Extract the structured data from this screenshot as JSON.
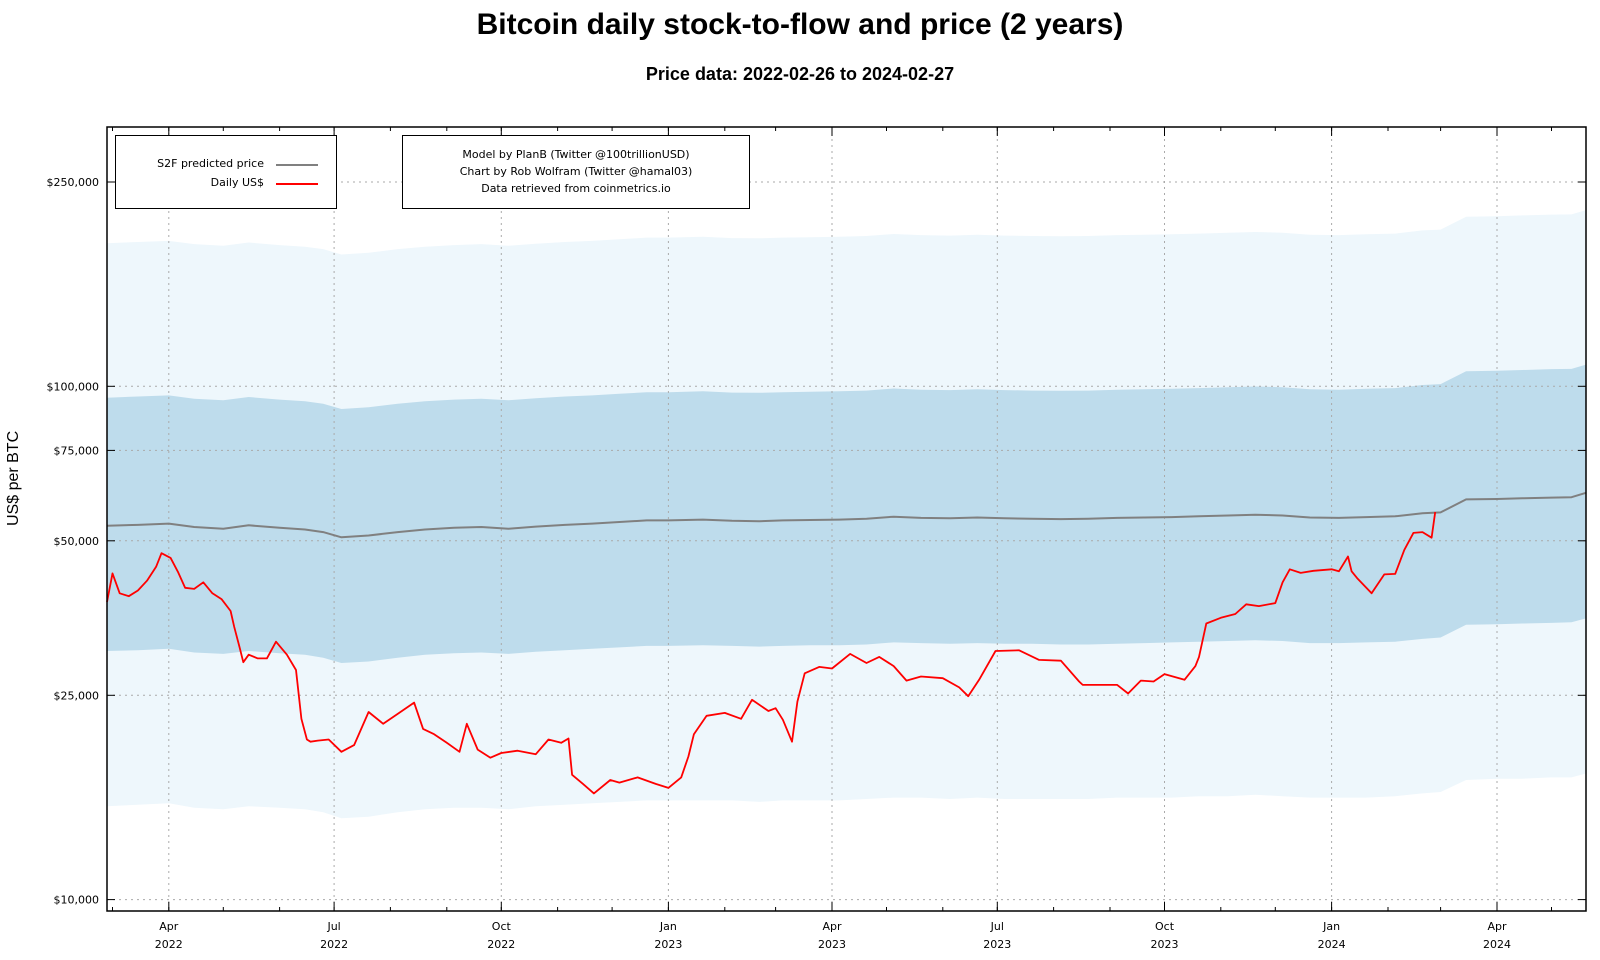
{
  "title": "Bitcoin daily stock-to-flow and price (2 years)",
  "subtitle": "Price data: 2022-02-26 to 2024-02-27",
  "credits": {
    "line1": "Model by PlanB (Twitter @100trillionUSD)",
    "line2": "Chart by Rob Wolfram (Twitter @hamal03)",
    "line3": "Data retrieved from coinmetrics.io"
  },
  "colors": {
    "s2f": "#808080",
    "price": "#ff0000",
    "band_outer": "#eef7fc",
    "band_inner": "#bedcec",
    "grid": "#aaaaaa"
  },
  "chart_data": {
    "type": "line",
    "title": "Bitcoin daily stock-to-flow and price (2 years)",
    "subtitle": "Price data: 2022-02-26 to 2024-02-27",
    "ylabel": "US$ per BTC",
    "yscale": "log",
    "ylim": [
      9500,
      320000
    ],
    "xlim": [
      "2022-02-26",
      "2024-05-20"
    ],
    "grid": true,
    "legend_position": "top-left",
    "y_ticks": [
      {
        "value": 10000,
        "label": "$10,000"
      },
      {
        "value": 25000,
        "label": "$25,000"
      },
      {
        "value": 50000,
        "label": "$50,000"
      },
      {
        "value": 75000,
        "label": "$75,000"
      },
      {
        "value": 100000,
        "label": "$100,000"
      },
      {
        "value": 250000,
        "label": "$250,000"
      }
    ],
    "x_ticks": [
      {
        "date": "2022-04-01",
        "month": "Apr",
        "year": "2022"
      },
      {
        "date": "2022-07-01",
        "month": "Jul",
        "year": "2022"
      },
      {
        "date": "2022-10-01",
        "month": "Oct",
        "year": "2022"
      },
      {
        "date": "2023-01-01",
        "month": "Jan",
        "year": "2023"
      },
      {
        "date": "2023-04-01",
        "month": "Apr",
        "year": "2023"
      },
      {
        "date": "2023-07-01",
        "month": "Jul",
        "year": "2023"
      },
      {
        "date": "2023-10-01",
        "month": "Oct",
        "year": "2023"
      },
      {
        "date": "2024-01-01",
        "month": "Jan",
        "year": "2024"
      },
      {
        "date": "2024-04-01",
        "month": "Apr",
        "year": "2024"
      }
    ],
    "series": [
      {
        "name": "S2F predicted price",
        "x": [
          "2022-02-26",
          "2022-03-15",
          "2022-04-01",
          "2022-04-15",
          "2022-05-01",
          "2022-05-15",
          "2022-06-01",
          "2022-06-15",
          "2022-06-25",
          "2022-07-05",
          "2022-07-20",
          "2022-08-05",
          "2022-08-20",
          "2022-09-05",
          "2022-09-20",
          "2022-10-05",
          "2022-10-20",
          "2022-11-05",
          "2022-11-20",
          "2022-12-05",
          "2022-12-20",
          "2023-01-01",
          "2023-01-20",
          "2023-02-05",
          "2023-02-20",
          "2023-03-05",
          "2023-03-20",
          "2023-04-05",
          "2023-04-20",
          "2023-05-05",
          "2023-05-20",
          "2023-06-05",
          "2023-06-20",
          "2023-07-05",
          "2023-07-20",
          "2023-08-05",
          "2023-08-20",
          "2023-09-05",
          "2023-09-20",
          "2023-10-05",
          "2023-10-20",
          "2023-11-05",
          "2023-11-20",
          "2023-12-05",
          "2023-12-20",
          "2024-01-05",
          "2024-01-20",
          "2024-02-05",
          "2024-02-20",
          "2024-03-01",
          "2024-03-15",
          "2024-04-01",
          "2024-04-15",
          "2024-05-01",
          "2024-05-12",
          "2024-05-20"
        ],
        "values": [
          53500,
          53700,
          54000,
          53200,
          52800,
          53600,
          53000,
          52600,
          52000,
          50800,
          51200,
          52000,
          52600,
          53000,
          53200,
          52800,
          53300,
          53700,
          54000,
          54400,
          54800,
          54800,
          55000,
          54700,
          54600,
          54800,
          54900,
          55000,
          55200,
          55700,
          55400,
          55300,
          55500,
          55300,
          55200,
          55100,
          55200,
          55400,
          55500,
          55600,
          55800,
          56000,
          56200,
          56000,
          55500,
          55400,
          55600,
          55800,
          56600,
          56800,
          60200,
          60300,
          60500,
          60700,
          60800,
          62000
        ]
      },
      {
        "name": "Daily US$",
        "x": [
          "2022-02-26",
          "2022-03-01",
          "2022-03-05",
          "2022-03-10",
          "2022-03-15",
          "2022-03-20",
          "2022-03-25",
          "2022-03-28",
          "2022-04-02",
          "2022-04-06",
          "2022-04-10",
          "2022-04-15",
          "2022-04-20",
          "2022-04-25",
          "2022-04-30",
          "2022-05-05",
          "2022-05-07",
          "2022-05-10",
          "2022-05-12",
          "2022-05-15",
          "2022-05-20",
          "2022-05-25",
          "2022-05-30",
          "2022-06-05",
          "2022-06-10",
          "2022-06-13",
          "2022-06-16",
          "2022-06-18",
          "2022-06-22",
          "2022-06-28",
          "2022-07-05",
          "2022-07-12",
          "2022-07-20",
          "2022-07-28",
          "2022-08-05",
          "2022-08-14",
          "2022-08-19",
          "2022-08-25",
          "2022-09-01",
          "2022-09-08",
          "2022-09-12",
          "2022-09-18",
          "2022-09-25",
          "2022-10-01",
          "2022-10-10",
          "2022-10-20",
          "2022-10-27",
          "2022-11-03",
          "2022-11-07",
          "2022-11-09",
          "2022-11-15",
          "2022-11-21",
          "2022-11-30",
          "2022-12-05",
          "2022-12-15",
          "2022-12-25",
          "2023-01-01",
          "2023-01-08",
          "2023-01-12",
          "2023-01-15",
          "2023-01-22",
          "2023-02-01",
          "2023-02-10",
          "2023-02-16",
          "2023-02-25",
          "2023-03-01",
          "2023-03-05",
          "2023-03-10",
          "2023-03-13",
          "2023-03-17",
          "2023-03-25",
          "2023-04-01",
          "2023-04-11",
          "2023-04-20",
          "2023-04-27",
          "2023-05-05",
          "2023-05-12",
          "2023-05-20",
          "2023-06-01",
          "2023-06-10",
          "2023-06-15",
          "2023-06-21",
          "2023-06-30",
          "2023-07-13",
          "2023-07-24",
          "2023-08-05",
          "2023-08-15",
          "2023-08-17",
          "2023-08-25",
          "2023-09-05",
          "2023-09-11",
          "2023-09-18",
          "2023-09-25",
          "2023-10-01",
          "2023-10-12",
          "2023-10-18",
          "2023-10-20",
          "2023-10-24",
          "2023-11-01",
          "2023-11-09",
          "2023-11-15",
          "2023-11-22",
          "2023-12-01",
          "2023-12-05",
          "2023-12-09",
          "2023-12-15",
          "2023-12-22",
          "2024-01-01",
          "2024-01-05",
          "2024-01-10",
          "2024-01-12",
          "2024-01-15",
          "2024-01-23",
          "2024-01-30",
          "2024-02-05",
          "2024-02-10",
          "2024-02-15",
          "2024-02-20",
          "2024-02-25",
          "2024-02-27"
        ],
        "values": [
          38000,
          43200,
          39500,
          39000,
          40000,
          41800,
          44500,
          47300,
          46300,
          43500,
          40500,
          40300,
          41500,
          39500,
          38500,
          36500,
          34000,
          31000,
          29000,
          30000,
          29500,
          29500,
          31800,
          30000,
          28000,
          22500,
          20500,
          20300,
          20400,
          20500,
          19400,
          20000,
          23200,
          22000,
          23000,
          24200,
          21500,
          21000,
          20200,
          19400,
          22000,
          19600,
          18900,
          19300,
          19500,
          19200,
          20500,
          20200,
          20600,
          17500,
          16800,
          16100,
          17100,
          16900,
          17300,
          16800,
          16500,
          17300,
          19000,
          21000,
          22800,
          23100,
          22500,
          24500,
          23300,
          23600,
          22400,
          20300,
          24300,
          27600,
          28400,
          28200,
          30100,
          28900,
          29700,
          28500,
          26700,
          27200,
          27000,
          25900,
          24900,
          26800,
          30500,
          30600,
          29300,
          29200,
          26600,
          26200,
          26200,
          26200,
          25200,
          26700,
          26600,
          27500,
          26800,
          28500,
          29700,
          34500,
          35400,
          36000,
          37600,
          37300,
          37800,
          41500,
          44000,
          43300,
          43700,
          44000,
          43600,
          46600,
          43600,
          42300,
          39500,
          43000,
          43100,
          48000,
          51800,
          52000,
          50700,
          56900
        ]
      }
    ],
    "bands": [
      {
        "name": "inner",
        "x": [
          "2022-02-26",
          "2022-03-15",
          "2022-04-01",
          "2022-04-15",
          "2022-05-01",
          "2022-05-15",
          "2022-06-01",
          "2022-06-15",
          "2022-06-25",
          "2022-07-05",
          "2022-07-20",
          "2022-08-05",
          "2022-08-20",
          "2022-09-05",
          "2022-09-20",
          "2022-10-05",
          "2022-10-20",
          "2022-11-05",
          "2022-11-20",
          "2022-12-05",
          "2022-12-20",
          "2023-01-01",
          "2023-01-20",
          "2023-02-05",
          "2023-02-20",
          "2023-03-05",
          "2023-03-20",
          "2023-04-05",
          "2023-04-20",
          "2023-05-05",
          "2023-05-20",
          "2023-06-05",
          "2023-06-20",
          "2023-07-05",
          "2023-07-20",
          "2023-08-05",
          "2023-08-20",
          "2023-09-05",
          "2023-09-20",
          "2023-10-05",
          "2023-10-20",
          "2023-11-05",
          "2023-11-20",
          "2023-12-05",
          "2023-12-20",
          "2024-01-05",
          "2024-01-20",
          "2024-02-05",
          "2024-02-20",
          "2024-03-01",
          "2024-03-15",
          "2024-04-01",
          "2024-04-15",
          "2024-05-01",
          "2024-05-12",
          "2024-05-20"
        ],
        "low": [
          30500,
          30600,
          30800,
          30300,
          30100,
          30500,
          30200,
          30000,
          29600,
          28900,
          29100,
          29600,
          30000,
          30200,
          30300,
          30100,
          30400,
          30600,
          30800,
          31000,
          31200,
          31200,
          31300,
          31200,
          31100,
          31200,
          31300,
          31300,
          31400,
          31700,
          31600,
          31500,
          31600,
          31500,
          31500,
          31400,
          31400,
          31500,
          31600,
          31700,
          31800,
          31900,
          32000,
          31900,
          31600,
          31600,
          31700,
          31800,
          32200,
          32400,
          34300,
          34400,
          34500,
          34600,
          34700,
          35300
        ],
        "high": [
          95000,
          95500,
          96000,
          94600,
          93900,
          95300,
          94200,
          93500,
          92500,
          90300,
          91000,
          92500,
          93500,
          94200,
          94600,
          93900,
          94800,
          95500,
          96000,
          96700,
          97400,
          97400,
          97800,
          97200,
          97100,
          97400,
          97600,
          97800,
          98100,
          99000,
          98500,
          98300,
          98700,
          98300,
          98100,
          98000,
          98100,
          98500,
          98700,
          98900,
          99200,
          99600,
          99900,
          99600,
          98700,
          98500,
          98900,
          99200,
          100600,
          101000,
          107000,
          107200,
          107600,
          108000,
          108100,
          110200
        ]
      },
      {
        "name": "outer",
        "x": [
          "2022-02-26",
          "2022-03-15",
          "2022-04-01",
          "2022-04-15",
          "2022-05-01",
          "2022-05-15",
          "2022-06-01",
          "2022-06-15",
          "2022-06-25",
          "2022-07-05",
          "2022-07-20",
          "2022-08-05",
          "2022-08-20",
          "2022-09-05",
          "2022-09-20",
          "2022-10-05",
          "2022-10-20",
          "2022-11-05",
          "2022-11-20",
          "2022-12-05",
          "2022-12-20",
          "2023-01-01",
          "2023-01-20",
          "2023-02-05",
          "2023-02-20",
          "2023-03-05",
          "2023-03-20",
          "2023-04-05",
          "2023-04-20",
          "2023-05-05",
          "2023-05-20",
          "2023-06-05",
          "2023-06-20",
          "2023-07-05",
          "2023-07-20",
          "2023-08-05",
          "2023-08-20",
          "2023-09-05",
          "2023-09-20",
          "2023-10-05",
          "2023-10-20",
          "2023-11-05",
          "2023-11-20",
          "2023-12-05",
          "2023-12-20",
          "2024-01-05",
          "2024-01-20",
          "2024-02-05",
          "2024-02-20",
          "2024-03-01",
          "2024-03-15",
          "2024-04-01",
          "2024-04-15",
          "2024-05-01",
          "2024-05-12",
          "2024-05-20"
        ],
        "low": [
          15200,
          15300,
          15400,
          15100,
          15000,
          15200,
          15100,
          15000,
          14800,
          14400,
          14500,
          14800,
          15000,
          15100,
          15100,
          15000,
          15200,
          15300,
          15400,
          15500,
          15600,
          15600,
          15600,
          15600,
          15500,
          15600,
          15600,
          15600,
          15700,
          15800,
          15800,
          15700,
          15800,
          15700,
          15700,
          15700,
          15700,
          15800,
          15800,
          15800,
          15900,
          15900,
          16000,
          15900,
          15800,
          15800,
          15800,
          15900,
          16100,
          16200,
          17100,
          17200,
          17200,
          17300,
          17300,
          17600
        ],
        "high": [
          190000,
          191000,
          192000,
          189200,
          187800,
          190600,
          188400,
          187000,
          185000,
          180600,
          182000,
          185000,
          187000,
          188400,
          189200,
          187800,
          189600,
          191000,
          192000,
          193400,
          194800,
          194800,
          195600,
          194400,
          194200,
          194800,
          195200,
          195600,
          196200,
          198000,
          197000,
          196600,
          197400,
          196600,
          196200,
          196000,
          196200,
          197000,
          197400,
          197800,
          198400,
          199200,
          199800,
          199200,
          197400,
          197000,
          197800,
          198400,
          201200,
          202000,
          214000,
          214400,
          215200,
          216000,
          216200,
          220400
        ]
      }
    ]
  }
}
